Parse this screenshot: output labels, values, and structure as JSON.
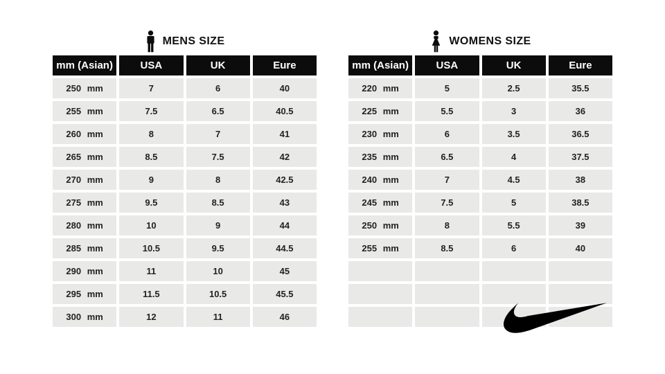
{
  "colors": {
    "page_bg": "#ffffff",
    "header_bg": "#0c0c0c",
    "header_text": "#ffffff",
    "row_bg": "#e9e9e8",
    "cell_text": "#222222",
    "logo": "#000000"
  },
  "chart_data": [
    {
      "type": "table",
      "title": "MENS SIZE",
      "icon": "man-icon",
      "columns": [
        "mm (Asian)",
        "USA",
        "UK",
        "Eure"
      ],
      "rows": [
        [
          "250 mm",
          "7",
          "6",
          "40"
        ],
        [
          "255 mm",
          "7.5",
          "6.5",
          "40.5"
        ],
        [
          "260 mm",
          "8",
          "7",
          "41"
        ],
        [
          "265 mm",
          "8.5",
          "7.5",
          "42"
        ],
        [
          "270 mm",
          "9",
          "8",
          "42.5"
        ],
        [
          "275 mm",
          "9.5",
          "8.5",
          "43"
        ],
        [
          "280 mm",
          "10",
          "9",
          "44"
        ],
        [
          "285 mm",
          "10.5",
          "9.5",
          "44.5"
        ],
        [
          "290 mm",
          "11",
          "10",
          "45"
        ],
        [
          "295 mm",
          "11.5",
          "10.5",
          "45.5"
        ],
        [
          "300 mm",
          "12",
          "11",
          "46"
        ]
      ],
      "empty_rows": 0
    },
    {
      "type": "table",
      "title": "WOMENS SIZE",
      "icon": "woman-icon",
      "columns": [
        "mm (Asian)",
        "USA",
        "UK",
        "Eure"
      ],
      "rows": [
        [
          "220 mm",
          "5",
          "2.5",
          "35.5"
        ],
        [
          "225 mm",
          "5.5",
          "3",
          "36"
        ],
        [
          "230 mm",
          "6",
          "3.5",
          "36.5"
        ],
        [
          "235 mm",
          "6.5",
          "4",
          "37.5"
        ],
        [
          "240 mm",
          "7",
          "4.5",
          "38"
        ],
        [
          "245 mm",
          "7.5",
          "5",
          "38.5"
        ],
        [
          "250 mm",
          "8",
          "5.5",
          "39"
        ],
        [
          "255 mm",
          "8.5",
          "6",
          "40"
        ]
      ],
      "empty_rows": 3,
      "logo": "nike-swoosh"
    }
  ]
}
